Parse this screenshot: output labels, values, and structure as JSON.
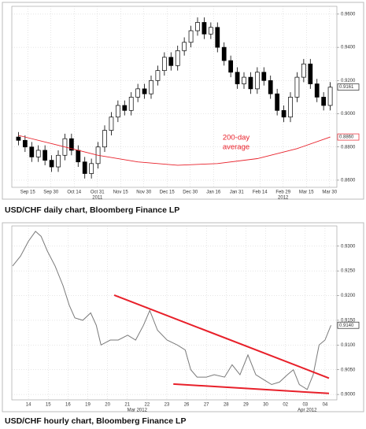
{
  "chart_data": [
    {
      "type": "candlestick",
      "title": "USD/CHF daily chart, Bloomberg Finance LP",
      "open": [
        0.886,
        0.884,
        0.88,
        0.874,
        0.878,
        0.872,
        0.868,
        0.875,
        0.885,
        0.878,
        0.871,
        0.864,
        0.87,
        0.88,
        0.89,
        0.898,
        0.905,
        0.902,
        0.91,
        0.915,
        0.912,
        0.92,
        0.926,
        0.934,
        0.929,
        0.938,
        0.943,
        0.95,
        0.955,
        0.948,
        0.952,
        0.94,
        0.932,
        0.925,
        0.918,
        0.922,
        0.915,
        0.925,
        0.92,
        0.912,
        0.902,
        0.898,
        0.91,
        0.922,
        0.93,
        0.918,
        0.91,
        0.905
      ],
      "high": [
        0.889,
        0.887,
        0.883,
        0.881,
        0.881,
        0.875,
        0.878,
        0.888,
        0.888,
        0.881,
        0.874,
        0.873,
        0.883,
        0.893,
        0.901,
        0.908,
        0.908,
        0.913,
        0.918,
        0.918,
        0.923,
        0.929,
        0.937,
        0.937,
        0.941,
        0.946,
        0.953,
        0.958,
        0.958,
        0.955,
        0.955,
        0.943,
        0.935,
        0.928,
        0.925,
        0.925,
        0.928,
        0.928,
        0.923,
        0.915,
        0.905,
        0.913,
        0.925,
        0.933,
        0.933,
        0.921,
        0.913,
        0.919
      ],
      "low": [
        0.881,
        0.877,
        0.871,
        0.871,
        0.869,
        0.865,
        0.865,
        0.872,
        0.875,
        0.868,
        0.861,
        0.861,
        0.867,
        0.877,
        0.887,
        0.895,
        0.899,
        0.899,
        0.907,
        0.909,
        0.909,
        0.917,
        0.923,
        0.926,
        0.926,
        0.935,
        0.94,
        0.947,
        0.945,
        0.945,
        0.937,
        0.929,
        0.922,
        0.915,
        0.915,
        0.912,
        0.912,
        0.917,
        0.909,
        0.899,
        0.895,
        0.895,
        0.907,
        0.919,
        0.915,
        0.907,
        0.902,
        0.902
      ],
      "close": [
        0.884,
        0.88,
        0.874,
        0.878,
        0.872,
        0.868,
        0.875,
        0.885,
        0.878,
        0.871,
        0.864,
        0.87,
        0.88,
        0.89,
        0.898,
        0.905,
        0.902,
        0.91,
        0.915,
        0.912,
        0.92,
        0.926,
        0.934,
        0.929,
        0.938,
        0.943,
        0.95,
        0.955,
        0.948,
        0.952,
        0.94,
        0.932,
        0.925,
        0.918,
        0.922,
        0.915,
        0.925,
        0.92,
        0.912,
        0.902,
        0.898,
        0.91,
        0.922,
        0.93,
        0.918,
        0.91,
        0.905,
        0.916
      ],
      "xlim": [
        -1,
        48
      ],
      "xticks": [
        {
          "value": 1.4,
          "label": "Sep 15"
        },
        {
          "value": 4.9,
          "label": "Sep 30"
        },
        {
          "value": 8.4,
          "label": "Oct 14"
        },
        {
          "value": 11.9,
          "label": "Oct 31"
        },
        {
          "value": 15.4,
          "label": "Nov 15"
        },
        {
          "value": 18.9,
          "label": "Nov 30"
        },
        {
          "value": 22.4,
          "label": "Dec 15"
        },
        {
          "value": 25.9,
          "label": "Dec 30"
        },
        {
          "value": 29.4,
          "label": "Jan 16"
        },
        {
          "value": 32.9,
          "label": "Jan 31"
        },
        {
          "value": 36.4,
          "label": "Feb 14"
        },
        {
          "value": 39.9,
          "label": "Feb 29"
        },
        {
          "value": 43.4,
          "label": "Mar 15"
        },
        {
          "value": 46.9,
          "label": "Mar 30"
        }
      ],
      "period_labels": [
        {
          "value": 11.9,
          "label": "2011"
        },
        {
          "value": 39.9,
          "label": "2012"
        }
      ],
      "ylim": [
        0.8557,
        0.9647
      ],
      "yticks": [
        {
          "value": 0.86,
          "label": "0.8600"
        },
        {
          "value": 0.88,
          "label": "0.8800"
        },
        {
          "value": 0.9,
          "label": "0.9000"
        },
        {
          "value": 0.92,
          "label": "0.9200"
        },
        {
          "value": 0.94,
          "label": "0.9400"
        },
        {
          "value": 0.96,
          "label": "0.9600"
        }
      ],
      "grid": true,
      "overlay": {
        "color": "#e8202a",
        "x": [
          0,
          6,
          12,
          18,
          24,
          30,
          36,
          42,
          47
        ],
        "y": [
          0.887,
          0.881,
          0.875,
          0.871,
          0.869,
          0.87,
          0.873,
          0.879,
          0.886
        ]
      },
      "annotation": [
        "200-day",
        "average"
      ],
      "annotation_color": "#e8202a",
      "price_labels": [
        {
          "value": 0.9161,
          "label": "0.9161",
          "color": "#222222"
        },
        {
          "value": 0.886,
          "label": "0.8860",
          "color": "#e8202a"
        }
      ]
    },
    {
      "type": "line",
      "title": "USD/CHF hourly chart, Bloomberg Finance LP",
      "color": "#7a7a7a",
      "x": [
        -0.8,
        -0.4,
        0,
        0.36,
        0.64,
        0.96,
        1.35,
        1.75,
        2.07,
        2.35,
        2.75,
        3.15,
        3.43,
        3.67,
        4.14,
        4.54,
        5.02,
        5.42,
        5.82,
        6.14,
        6.53,
        7.01,
        7.53,
        7.93,
        8.21,
        8.53,
        9.0,
        9.4,
        9.92,
        10.3,
        10.7,
        11.1,
        11.5,
        11.9,
        12.3,
        12.7,
        13.1,
        13.4,
        13.7,
        14.1,
        14.4,
        14.7,
        15.0,
        15.3
      ],
      "values": [
        0.926,
        0.928,
        0.931,
        0.933,
        0.932,
        0.929,
        0.926,
        0.922,
        0.918,
        0.9155,
        0.915,
        0.9165,
        0.914,
        0.91,
        0.911,
        0.911,
        0.912,
        0.911,
        0.914,
        0.917,
        0.913,
        0.911,
        0.91,
        0.909,
        0.905,
        0.9035,
        0.9035,
        0.904,
        0.9035,
        0.906,
        0.904,
        0.908,
        0.904,
        0.903,
        0.902,
        0.9025,
        0.904,
        0.905,
        0.902,
        0.901,
        0.904,
        0.91,
        0.911,
        0.914
      ],
      "xlim": [
        -0.84,
        15.6
      ],
      "xticks": [
        {
          "value": 0,
          "label": "14"
        },
        {
          "value": 1,
          "label": "15"
        },
        {
          "value": 2,
          "label": "16"
        },
        {
          "value": 3,
          "label": "19"
        },
        {
          "value": 4,
          "label": "20"
        },
        {
          "value": 5,
          "label": "21"
        },
        {
          "value": 6,
          "label": "22"
        },
        {
          "value": 7,
          "label": "23"
        },
        {
          "value": 8,
          "label": "26"
        },
        {
          "value": 9,
          "label": "27"
        },
        {
          "value": 10,
          "label": "28"
        },
        {
          "value": 11,
          "label": "29"
        },
        {
          "value": 12,
          "label": "30"
        },
        {
          "value": 13,
          "label": "02"
        },
        {
          "value": 14,
          "label": "03"
        },
        {
          "value": 15,
          "label": "04"
        }
      ],
      "period_labels": [
        {
          "value": 5.5,
          "label": "Mar 2012"
        },
        {
          "value": 14.1,
          "label": "Apr 2012"
        }
      ],
      "ylim": [
        0.8989,
        0.9341
      ],
      "yticks": [
        {
          "value": 0.9,
          "label": "0.9000"
        },
        {
          "value": 0.905,
          "label": "0.9050"
        },
        {
          "value": 0.91,
          "label": "0.9100"
        },
        {
          "value": 0.915,
          "label": "0.9150"
        },
        {
          "value": 0.92,
          "label": "0.9200"
        },
        {
          "value": 0.925,
          "label": "0.9250"
        },
        {
          "value": 0.93,
          "label": "0.9300"
        }
      ],
      "grid": true,
      "trendline_color": "#e8202a",
      "trendlines": [
        {
          "x": [
            4.34,
            15.2
          ],
          "y": [
            0.9201,
            0.9033
          ]
        },
        {
          "x": [
            7.33,
            15.2
          ],
          "y": [
            0.9021,
            0.9002
          ]
        }
      ],
      "price_labels": [
        {
          "value": 0.914,
          "label": "0.9140",
          "color": "#222222"
        }
      ]
    }
  ]
}
